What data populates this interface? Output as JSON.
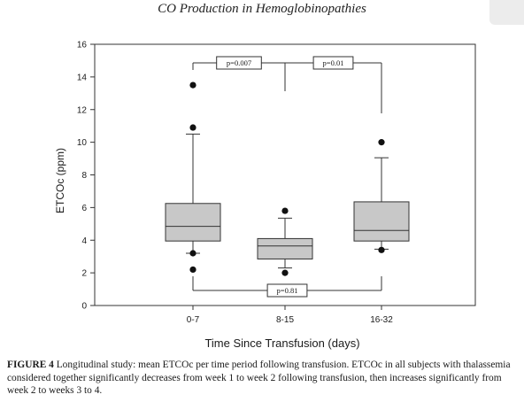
{
  "header": {
    "running_title": "CO Production in Hemoglobinopathies"
  },
  "chart_data": {
    "type": "box",
    "title": "",
    "xlabel": "Time Since Transfusion (days)",
    "ylabel": "ETCOc (ppm)",
    "ylim": [
      0,
      16
    ],
    "yticks": [
      0,
      2,
      4,
      6,
      8,
      10,
      12,
      14,
      16
    ],
    "grid": false,
    "categories": [
      "0-7",
      "8-15",
      "16-32"
    ],
    "boxes": [
      {
        "category": "0-7",
        "q1": 3.95,
        "median": 4.85,
        "q3": 6.25,
        "whisker_low": 3.2,
        "whisker_high": 10.5,
        "outliers": [
          2.2,
          3.2,
          10.9,
          13.5
        ]
      },
      {
        "category": "8-15",
        "q1": 2.85,
        "median": 3.65,
        "q3": 4.1,
        "whisker_low": 2.3,
        "whisker_high": 5.35,
        "outliers": [
          2.0,
          5.8
        ]
      },
      {
        "category": "16-32",
        "q1": 3.95,
        "median": 4.6,
        "q3": 6.35,
        "whisker_low": 3.45,
        "whisker_high": 9.05,
        "outliers": [
          3.4,
          10.0
        ]
      }
    ],
    "comparisons": [
      {
        "groups": [
          "0-7",
          "8-15"
        ],
        "label": "p=0.007",
        "placement": "top"
      },
      {
        "groups": [
          "8-15",
          "16-32"
        ],
        "label": "p=0.01",
        "placement": "top"
      },
      {
        "groups": [
          "0-7",
          "16-32"
        ],
        "label": "p=0.81",
        "placement": "bottom"
      }
    ],
    "colors": {
      "box_fill": "#c8c8c8",
      "line": "#333333",
      "outlier": "#111111"
    }
  },
  "caption": {
    "label": "FIGURE 4",
    "text": "Longitudinal study: mean ETCOc per time period following transfusion. ETCOc in all subjects with thalassemia considered together significantly decreases from week 1 to week 2 following transfusion, then increases significantly from week 2 to weeks 3 to 4."
  }
}
